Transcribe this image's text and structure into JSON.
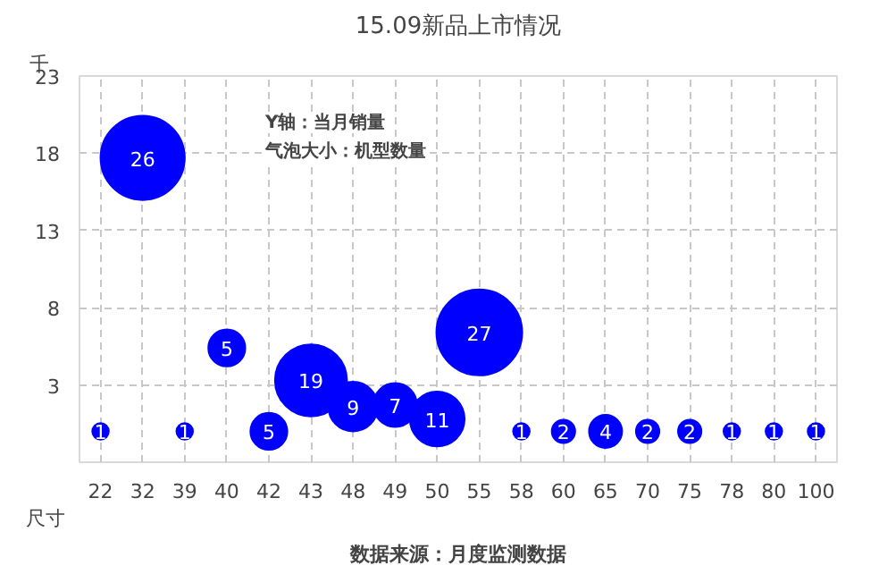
{
  "chart_data": {
    "type": "bubble",
    "title": "15.09新品上市情况",
    "ylabel": "千",
    "xlabel": "尺寸",
    "categories": [
      "22",
      "32",
      "39",
      "40",
      "42",
      "43",
      "48",
      "49",
      "50",
      "55",
      "58",
      "60",
      "65",
      "70",
      "75",
      "78",
      "80",
      "100"
    ],
    "values": [
      0,
      17.7,
      0,
      5.4,
      0,
      3.3,
      1.6,
      1.7,
      0.8,
      6.4,
      0,
      0,
      0,
      0,
      0,
      0,
      0,
      0
    ],
    "sizes": [
      1,
      26,
      1,
      5,
      5,
      19,
      9,
      7,
      11,
      27,
      1,
      2,
      4,
      2,
      2,
      1,
      1,
      1
    ],
    "value_labels": [
      "1",
      "26",
      "1",
      "5",
      "5",
      "19",
      "9",
      "7",
      "11",
      "27",
      "1",
      "2",
      "4",
      "2",
      "2",
      "1",
      "1",
      "1"
    ],
    "color": "#0000ff",
    "ylim": [
      -2,
      23
    ],
    "yticks": [
      3,
      8,
      13,
      18,
      23
    ],
    "grid": true,
    "annotations": [
      "Y轴：当月销量",
      "气泡大小：机型数量",
      "数据来源：月度监测数据"
    ]
  }
}
